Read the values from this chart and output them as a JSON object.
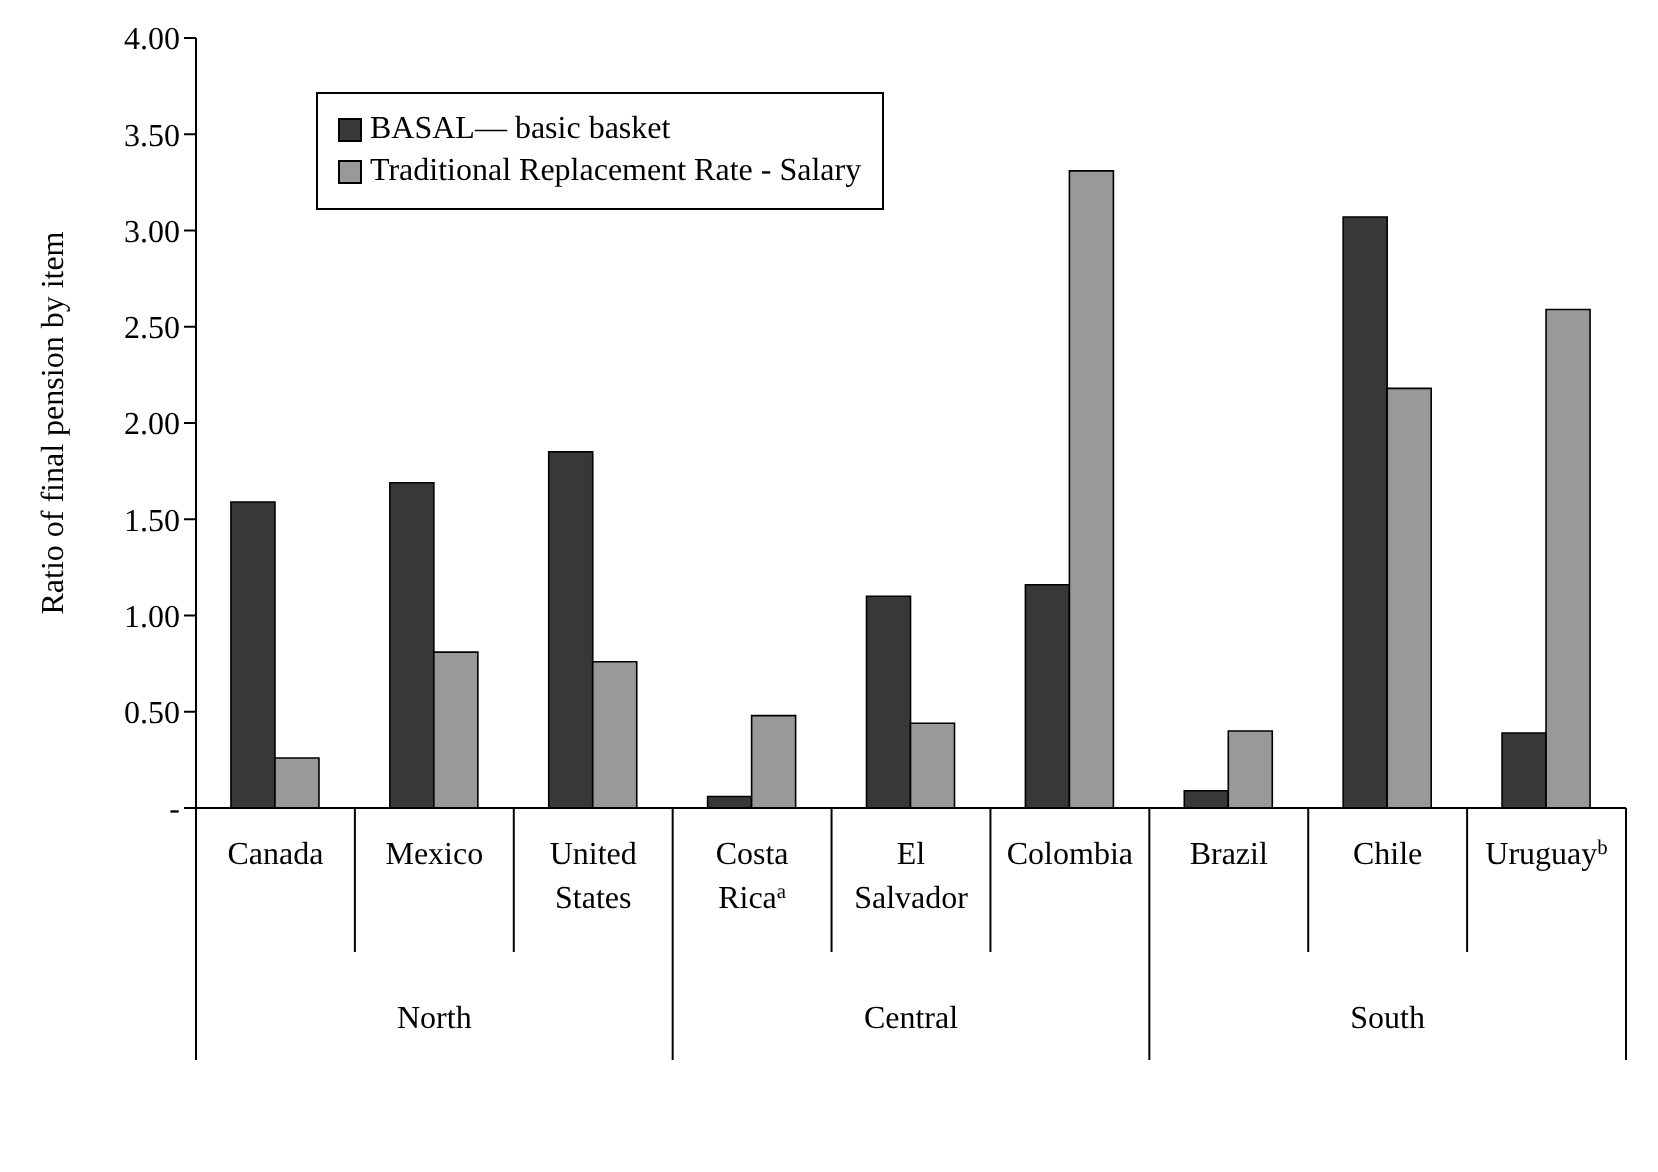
{
  "chart_data": {
    "type": "bar",
    "ylabel": "Ratio of final pension by item",
    "categories": [
      "Canada",
      "Mexico",
      "United States",
      "Costa Rica$^{a}$",
      "El Salvador",
      "Colombia",
      "Brazil",
      "Chile",
      "Uruguay$^{b}$"
    ],
    "series": [
      {
        "name": "BASAL— basic basket",
        "color": "#383838",
        "values": [
          1.59,
          1.69,
          1.85,
          0.06,
          1.1,
          1.16,
          0.09,
          3.07,
          0.39
        ]
      },
      {
        "name": "Traditional Replacement Rate - Salary",
        "color": "#999999",
        "values": [
          0.26,
          0.81,
          0.76,
          0.48,
          0.44,
          3.31,
          0.4,
          2.18,
          2.59
        ]
      }
    ],
    "ylim": [
      0,
      4
    ],
    "yticks": [
      {
        "value": 0,
        "label": "-"
      },
      {
        "value": 0.5,
        "label": "0.50"
      },
      {
        "value": 1,
        "label": "1.00"
      },
      {
        "value": 1.5,
        "label": "1.50"
      },
      {
        "value": 2,
        "label": "2.00"
      },
      {
        "value": 2.5,
        "label": "2.50"
      },
      {
        "value": 3,
        "label": "3.00"
      },
      {
        "value": 3.5,
        "label": "3.50"
      },
      {
        "value": 4,
        "label": "4.00"
      }
    ],
    "annotations": [
      "North",
      "Central",
      "South"
    ],
    "legend": "top left",
    "grid": false
  }
}
